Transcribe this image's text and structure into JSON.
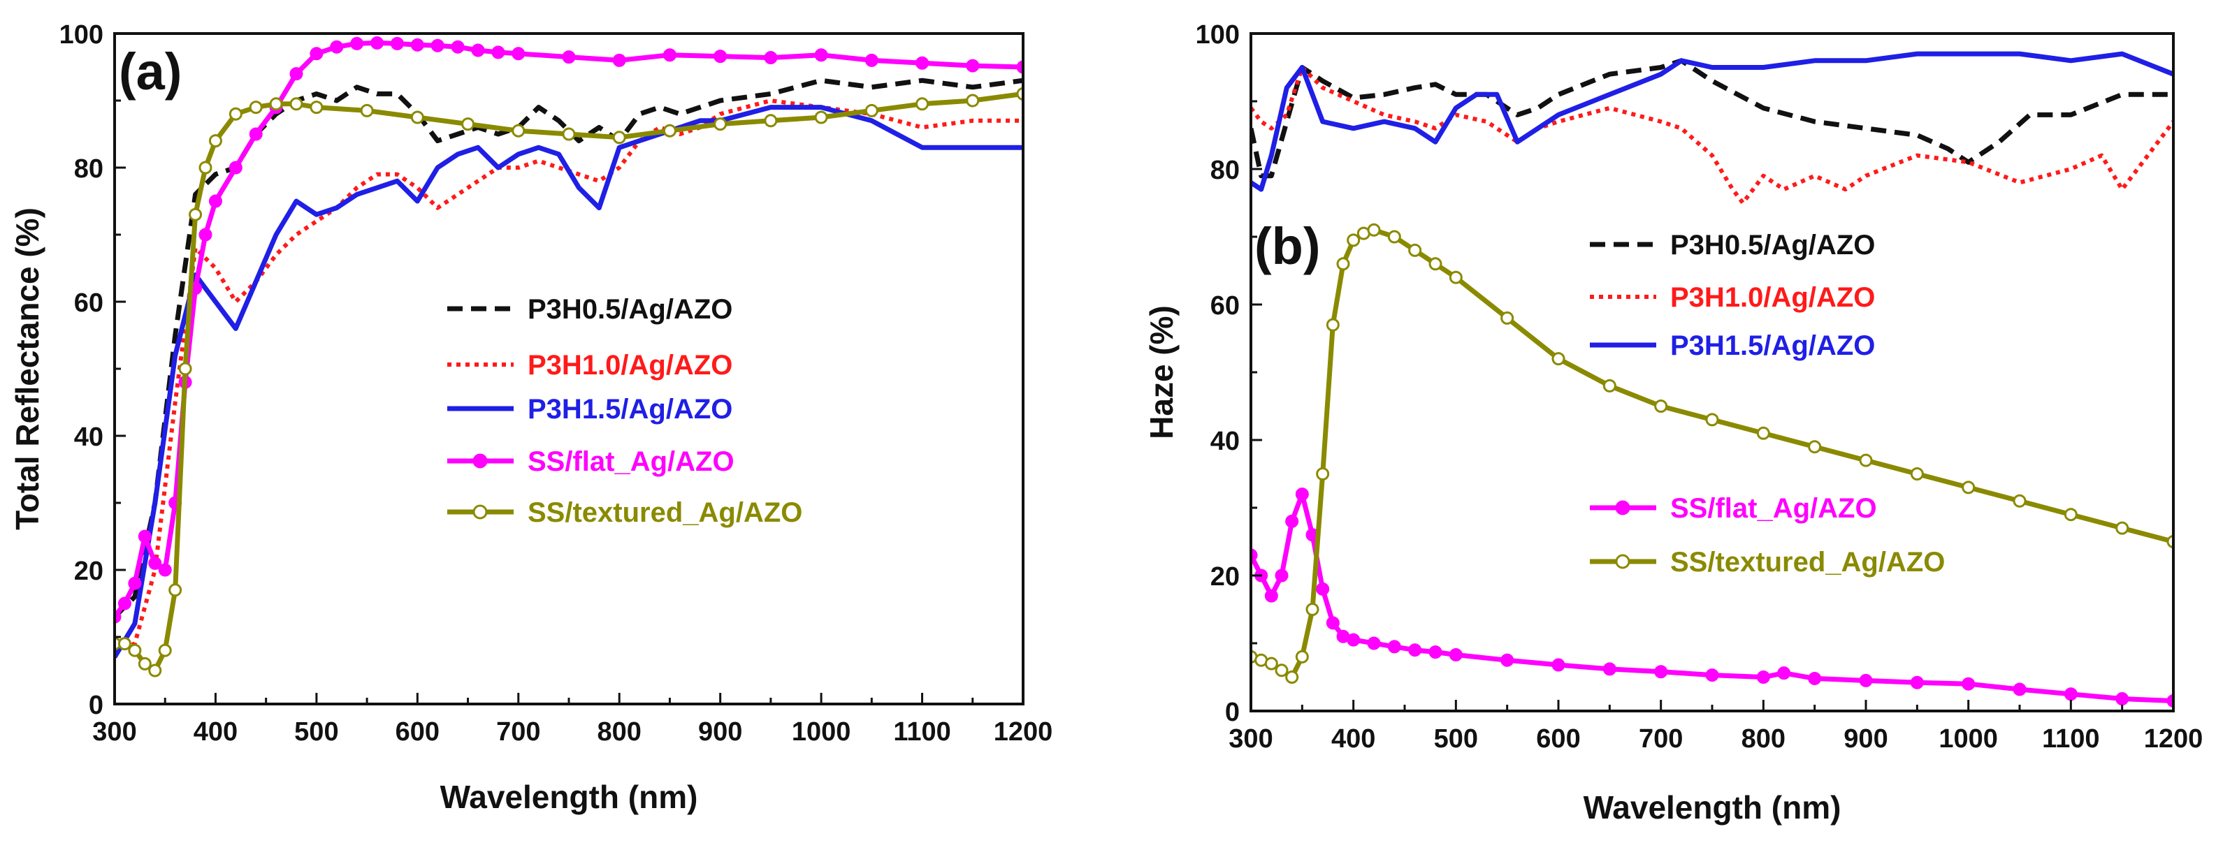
{
  "chart_data": [
    {
      "type": "line",
      "panel_label": "(a)",
      "xlabel": "Wavelength (nm)",
      "ylabel": "Total Reflectance (%)",
      "xlim": [
        300,
        1200
      ],
      "ylim": [
        0,
        100
      ],
      "xticks": [
        300,
        400,
        500,
        600,
        700,
        800,
        900,
        1000,
        1100,
        1200
      ],
      "yticks": [
        0,
        20,
        40,
        60,
        80,
        100
      ],
      "legend_position": "center-right",
      "series": [
        {
          "name": "P3H0.5/Ag/AZO",
          "color": "#111111",
          "style": "dashed",
          "marker": "none",
          "x": [
            300,
            320,
            340,
            360,
            380,
            400,
            420,
            440,
            460,
            480,
            500,
            520,
            540,
            560,
            580,
            600,
            620,
            640,
            660,
            680,
            700,
            720,
            740,
            760,
            780,
            800,
            820,
            840,
            860,
            880,
            900,
            950,
            1000,
            1050,
            1100,
            1150,
            1200
          ],
          "y": [
            13,
            16,
            30,
            55,
            76,
            79,
            80,
            85,
            88,
            90,
            91,
            90,
            92,
            91,
            91,
            88,
            84,
            85,
            86,
            85,
            86,
            89,
            87,
            84,
            86,
            84,
            88,
            89,
            88,
            89,
            90,
            91,
            93,
            92,
            93,
            92,
            93
          ]
        },
        {
          "name": "P3H1.0/Ag/AZO",
          "color": "#ff1a1a",
          "style": "dotted",
          "marker": "none",
          "x": [
            300,
            320,
            340,
            360,
            380,
            400,
            420,
            440,
            460,
            480,
            500,
            520,
            540,
            560,
            580,
            600,
            620,
            640,
            660,
            680,
            700,
            720,
            740,
            760,
            780,
            800,
            820,
            840,
            860,
            880,
            900,
            950,
            1000,
            1050,
            1100,
            1150,
            1200
          ],
          "y": [
            8,
            9,
            20,
            45,
            68,
            65,
            60,
            63,
            67,
            70,
            72,
            74,
            77,
            79,
            79,
            77,
            74,
            76,
            78,
            80,
            80,
            81,
            80,
            79,
            78,
            80,
            84,
            86,
            85,
            86,
            88,
            90,
            89,
            88,
            86,
            87,
            87
          ]
        },
        {
          "name": "P3H1.5/Ag/AZO",
          "color": "#1f1fe6",
          "style": "solid",
          "marker": "none",
          "x": [
            300,
            320,
            340,
            360,
            380,
            400,
            420,
            440,
            460,
            480,
            500,
            520,
            540,
            560,
            580,
            600,
            620,
            640,
            660,
            680,
            700,
            720,
            740,
            760,
            780,
            800,
            820,
            840,
            860,
            880,
            900,
            950,
            1000,
            1050,
            1100,
            1150,
            1200
          ],
          "y": [
            7,
            12,
            30,
            52,
            64,
            60,
            56,
            63,
            70,
            75,
            73,
            74,
            76,
            77,
            78,
            75,
            80,
            82,
            83,
            80,
            82,
            83,
            82,
            77,
            74,
            83,
            84,
            85,
            86,
            87,
            87,
            89,
            89,
            87,
            83,
            83,
            83
          ]
        },
        {
          "name": "SS/flat_Ag/AZO",
          "color": "#ff00ff",
          "style": "solid",
          "marker": "filled-circle",
          "x": [
            300,
            310,
            320,
            330,
            340,
            350,
            360,
            370,
            380,
            390,
            400,
            420,
            440,
            460,
            480,
            500,
            520,
            540,
            560,
            580,
            600,
            620,
            640,
            660,
            680,
            700,
            750,
            800,
            850,
            900,
            950,
            1000,
            1050,
            1100,
            1150,
            1200
          ],
          "y": [
            13,
            15,
            18,
            25,
            21,
            20,
            30,
            48,
            62,
            70,
            75,
            80,
            85,
            89,
            94,
            97,
            98,
            98.5,
            98.6,
            98.5,
            98.3,
            98.2,
            98,
            97.5,
            97.2,
            97,
            96.5,
            96,
            96.8,
            96.6,
            96.4,
            96.8,
            96,
            95.6,
            95.2,
            95
          ]
        },
        {
          "name": "SS/textured_Ag/AZO",
          "color": "#8a8a00",
          "style": "solid",
          "marker": "open-circle",
          "x": [
            300,
            310,
            320,
            330,
            340,
            350,
            360,
            370,
            380,
            390,
            400,
            420,
            440,
            460,
            480,
            500,
            550,
            600,
            650,
            700,
            750,
            800,
            850,
            900,
            950,
            1000,
            1050,
            1100,
            1150,
            1200
          ],
          "y": [
            9,
            9,
            8,
            6,
            5,
            8,
            17,
            50,
            73,
            80,
            84,
            88,
            89,
            89.5,
            89.5,
            89,
            88.5,
            87.5,
            86.5,
            85.5,
            85,
            84.5,
            85.5,
            86.5,
            87,
            87.5,
            88.5,
            89.5,
            90,
            91
          ]
        }
      ]
    },
    {
      "type": "line",
      "panel_label": "(b)",
      "xlabel": "Wavelength (nm)",
      "ylabel": "Haze (%)",
      "xlim": [
        300,
        1200
      ],
      "ylim": [
        0,
        100
      ],
      "xticks": [
        300,
        400,
        500,
        600,
        700,
        800,
        900,
        1000,
        1100,
        1200
      ],
      "yticks": [
        0,
        20,
        40,
        60,
        80,
        100
      ],
      "legend_position": "center-right",
      "series": [
        {
          "name": "P3H0.5/Ag/AZO",
          "color": "#111111",
          "style": "dashed",
          "marker": "none",
          "x": [
            300,
            310,
            320,
            335,
            350,
            370,
            400,
            430,
            460,
            480,
            500,
            530,
            560,
            580,
            600,
            650,
            700,
            720,
            750,
            800,
            850,
            900,
            950,
            980,
            1000,
            1030,
            1060,
            1100,
            1150,
            1200
          ],
          "y": [
            86,
            79,
            79,
            87,
            95,
            93,
            90.5,
            91,
            92,
            92.5,
            91,
            91,
            88,
            89,
            91,
            94,
            95,
            96,
            93,
            89,
            87,
            86,
            85,
            83,
            81,
            84,
            88,
            88,
            91,
            91
          ]
        },
        {
          "name": "P3H1.0/Ag/AZO",
          "color": "#ff1a1a",
          "style": "dotted",
          "marker": "none",
          "x": [
            300,
            310,
            320,
            335,
            350,
            370,
            400,
            430,
            460,
            480,
            500,
            530,
            560,
            580,
            600,
            650,
            700,
            720,
            750,
            770,
            780,
            800,
            820,
            850,
            880,
            900,
            950,
            1000,
            1050,
            1100,
            1130,
            1150,
            1200
          ],
          "y": [
            89,
            87,
            86,
            88,
            95,
            92,
            90,
            88,
            87,
            86,
            88,
            87,
            84,
            86,
            87,
            89,
            87,
            86,
            82,
            77,
            75,
            79,
            77,
            79,
            77,
            79,
            82,
            81,
            78,
            80,
            82,
            77,
            87
          ]
        },
        {
          "name": "P3H1.5/Ag/AZO",
          "color": "#1f1fe6",
          "style": "solid",
          "marker": "none",
          "x": [
            300,
            310,
            320,
            335,
            350,
            370,
            400,
            430,
            460,
            480,
            500,
            520,
            540,
            560,
            580,
            600,
            650,
            700,
            720,
            750,
            800,
            850,
            900,
            950,
            1000,
            1050,
            1100,
            1150,
            1200
          ],
          "y": [
            78,
            77,
            82,
            92,
            95,
            87,
            86,
            87,
            86,
            84,
            89,
            91,
            91,
            84,
            86,
            88,
            91,
            94,
            96,
            95,
            95,
            96,
            96,
            97,
            97,
            97,
            96,
            97,
            94
          ]
        },
        {
          "name": "SS/flat_Ag/AZO",
          "color": "#ff00ff",
          "style": "solid",
          "marker": "filled-circle",
          "x": [
            300,
            310,
            320,
            330,
            340,
            350,
            360,
            370,
            380,
            390,
            400,
            420,
            440,
            460,
            480,
            500,
            550,
            600,
            650,
            700,
            750,
            800,
            820,
            850,
            900,
            950,
            1000,
            1050,
            1100,
            1150,
            1200
          ],
          "y": [
            23,
            20,
            17,
            20,
            28,
            32,
            26,
            18,
            13,
            11,
            10.5,
            10,
            9.5,
            9,
            8.7,
            8.3,
            7.5,
            6.8,
            6.2,
            5.8,
            5.3,
            5,
            5.6,
            4.8,
            4.5,
            4.2,
            4,
            3.2,
            2.5,
            1.8,
            1.5
          ]
        },
        {
          "name": "SS/textured_Ag/AZO",
          "color": "#8a8a00",
          "style": "solid",
          "marker": "open-circle",
          "x": [
            300,
            310,
            320,
            330,
            340,
            350,
            360,
            370,
            380,
            390,
            400,
            410,
            420,
            440,
            460,
            480,
            500,
            550,
            600,
            650,
            700,
            750,
            800,
            850,
            900,
            950,
            1000,
            1050,
            1100,
            1150,
            1200
          ],
          "y": [
            8,
            7.5,
            7,
            6,
            5,
            8,
            15,
            35,
            57,
            66,
            69.5,
            70.5,
            71,
            70,
            68,
            66,
            64,
            58,
            52,
            48,
            45,
            43,
            41,
            39,
            37,
            35,
            33,
            31,
            29,
            27,
            25
          ]
        }
      ]
    }
  ]
}
